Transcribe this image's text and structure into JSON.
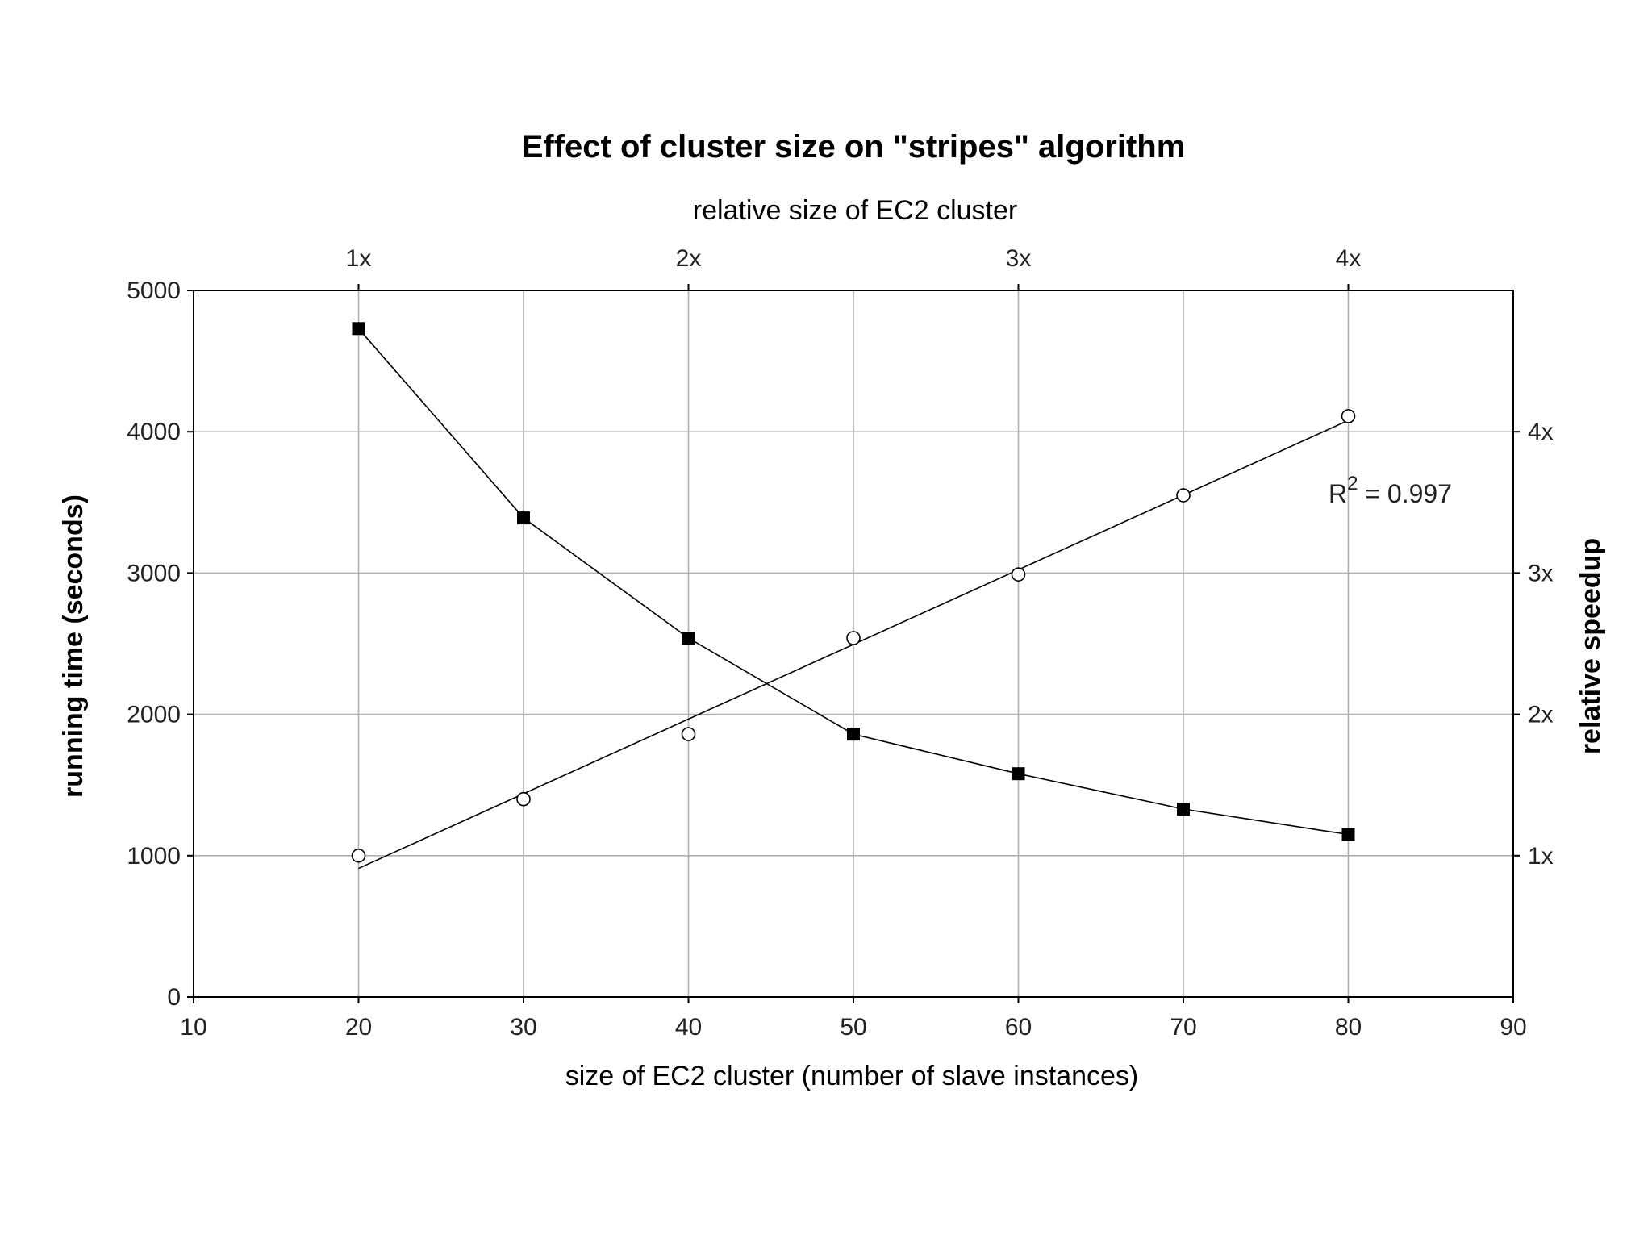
{
  "chart_data": {
    "type": "line",
    "title": "Effect of cluster size on \"stripes\" algorithm",
    "xlabel": "size of EC2 cluster (number of slave instances)",
    "ylabel": "running time (seconds)",
    "top_xlabel": "relative size of EC2 cluster",
    "right_ylabel": "relative speedup",
    "xlim": [
      10,
      90
    ],
    "ylim": [
      0,
      5000
    ],
    "x_ticks": [
      "10",
      "20",
      "30",
      "40",
      "50",
      "60",
      "70",
      "80",
      "90"
    ],
    "y_ticks": [
      "0",
      "1000",
      "2000",
      "3000",
      "4000",
      "5000"
    ],
    "top_ticks": [
      {
        "x": 20,
        "label": "1x"
      },
      {
        "x": 40,
        "label": "2x"
      },
      {
        "x": 60,
        "label": "3x"
      },
      {
        "x": 80,
        "label": "4x"
      }
    ],
    "right_ticks": [
      {
        "y": 1000,
        "label": "1x"
      },
      {
        "y": 2000,
        "label": "2x"
      },
      {
        "y": 3000,
        "label": "3x"
      },
      {
        "y": 4000,
        "label": "4x"
      }
    ],
    "grid": true,
    "series": [
      {
        "marker": "filled-square",
        "x": [
          20,
          30,
          40,
          50,
          60,
          70,
          80
        ],
        "y": [
          4730,
          3390,
          2540,
          1860,
          1580,
          1330,
          1150
        ]
      },
      {
        "marker": "open-circle",
        "axis": "right",
        "x": [
          20,
          30,
          40,
          50,
          60,
          70,
          80
        ],
        "y": [
          1000,
          1400,
          1860,
          2540,
          2990,
          3550,
          4110
        ]
      }
    ],
    "fit_line": {
      "x": [
        20,
        80
      ],
      "y": [
        910,
        4080
      ]
    },
    "annotation": {
      "base": "R",
      "superscript": "2",
      "text": " = 0.997",
      "x": 78.8,
      "y": 3500
    }
  }
}
